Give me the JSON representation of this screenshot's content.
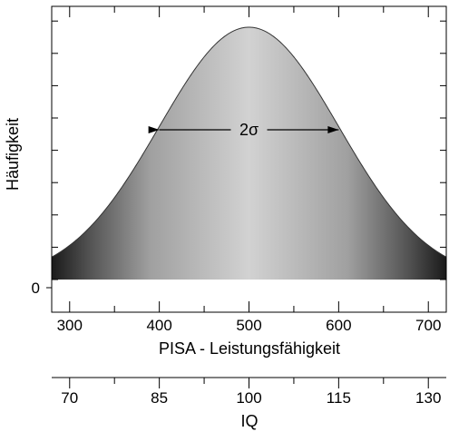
{
  "chart_data": {
    "type": "area",
    "title": "",
    "ylabel": "Häufigkeit",
    "xlabel": "PISA - Leistungsfähigkeit",
    "xlim": [
      280,
      720
    ],
    "x_ticks": [
      300,
      400,
      500,
      600,
      700
    ],
    "y_ticks": [
      0
    ],
    "mean": 500,
    "sigma": 100,
    "annotation": "2σ",
    "annotation_range": [
      400,
      600
    ],
    "grid": false,
    "fill_gradient": "dark at tails, light at center",
    "secondary_axis": {
      "label": "IQ",
      "ticks": [
        70,
        85,
        100,
        115,
        130
      ],
      "mapping": "IQ = 100 + (PISA - 500) * 0.15"
    },
    "series": [
      {
        "x": [
          280,
          300,
          320,
          340,
          360,
          380,
          400,
          420,
          440,
          460,
          480,
          500,
          520,
          540,
          560,
          580,
          600,
          620,
          640,
          660,
          680,
          700,
          720
        ],
        "values": [
          0.089,
          0.135,
          0.198,
          0.278,
          0.375,
          0.487,
          0.607,
          0.726,
          0.835,
          0.923,
          0.98,
          1.0,
          0.98,
          0.923,
          0.835,
          0.726,
          0.607,
          0.487,
          0.375,
          0.278,
          0.198,
          0.135,
          0.089
        ]
      }
    ]
  }
}
